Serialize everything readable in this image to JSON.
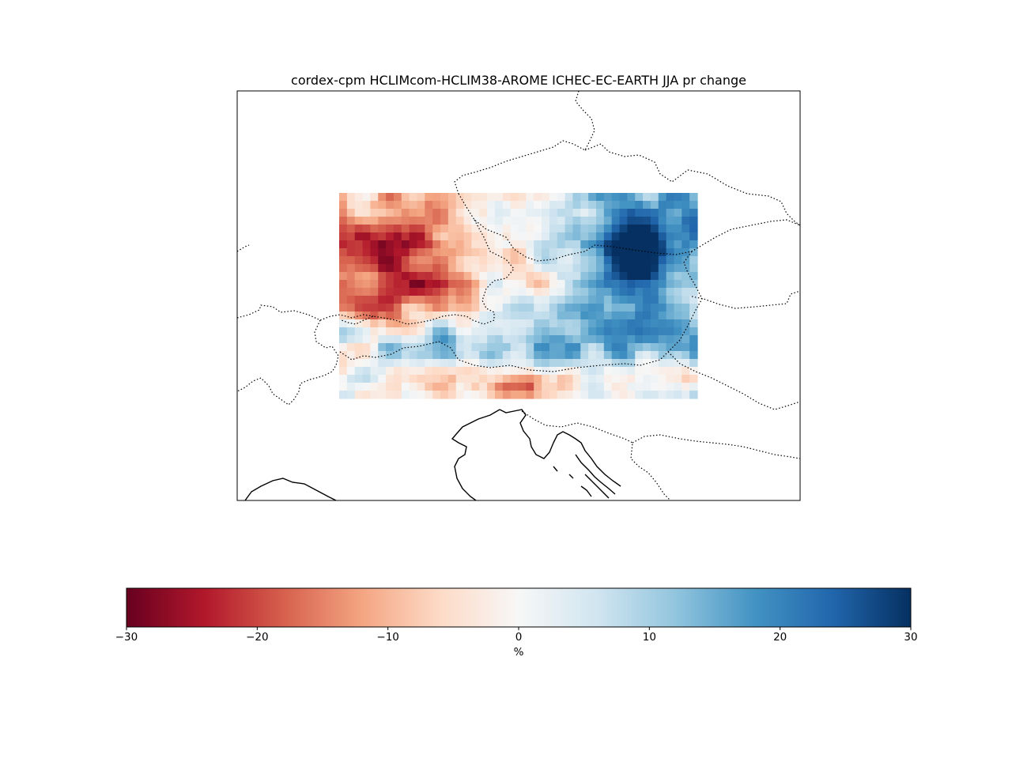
{
  "title": "cordex-cpm HCLIMcom-HCLIM38-AROME ICHEC-EC-EARTH JJA pr change",
  "map": {
    "variable": "pr",
    "season": "JJA",
    "projection": "regional map of the Alps region",
    "coastline_style": "solid",
    "border_style": "dotted"
  },
  "colorbar": {
    "colormap": "RdBu",
    "vmin": -30,
    "vmax": 30,
    "ticks": [
      {
        "value": -30,
        "label": "−30"
      },
      {
        "value": -20,
        "label": "−20"
      },
      {
        "value": -10,
        "label": "−10"
      },
      {
        "value": 0,
        "label": "0"
      },
      {
        "value": 10,
        "label": "10"
      },
      {
        "value": 20,
        "label": "20"
      },
      {
        "value": 30,
        "label": "30"
      }
    ],
    "label": "%",
    "stops": [
      "#67001f",
      "#b2182b",
      "#d6604d",
      "#f4a582",
      "#fddbc7",
      "#f7f7f7",
      "#d1e5f0",
      "#92c5de",
      "#4393c3",
      "#2166ac",
      "#053061"
    ]
  },
  "field": {
    "nx": 46,
    "ny": 26,
    "colors": {
      "strong_red": "#8b0a25",
      "strong_blue": "#053061"
    }
  }
}
